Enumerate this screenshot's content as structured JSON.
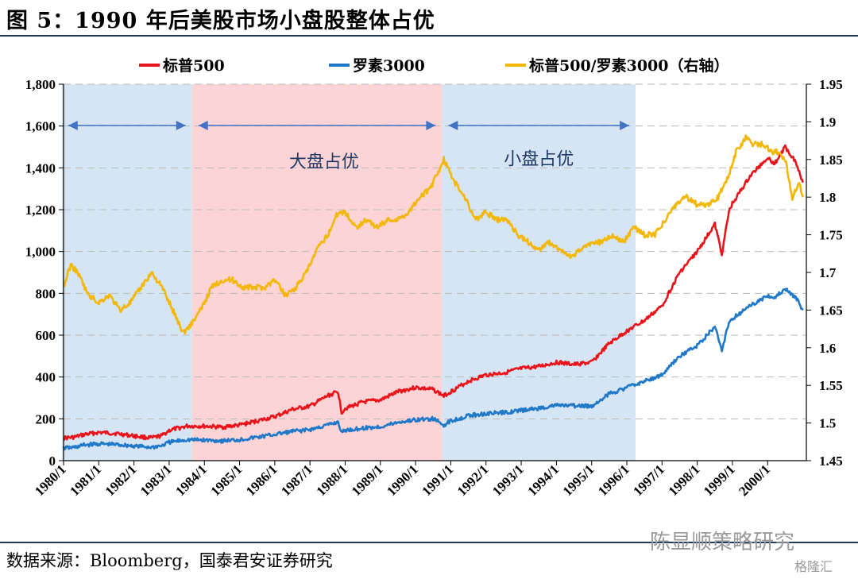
{
  "header": {
    "title": "图 5：1990 年后美股市场小盘股整体占优"
  },
  "footer": {
    "source": "数据来源：Bloomberg，国泰君安证券研究",
    "watermark": "陈显顺策略研究",
    "logo": "格隆汇"
  },
  "chart_data": {
    "type": "line",
    "legend": [
      {
        "name": "标普500",
        "color": "#e8141b"
      },
      {
        "name": "罗素3000",
        "color": "#1f78c8"
      },
      {
        "name": "标普500/罗素3000（右轴）",
        "color": "#f2b707"
      }
    ],
    "x_ticks": [
      "1980/1",
      "1981/1",
      "1982/1",
      "1983/1",
      "1984/1",
      "1985/1",
      "1986/1",
      "1987/1",
      "1988/1",
      "1989/1",
      "1990/1",
      "1991/1",
      "1992/1",
      "1993/1",
      "1994/1",
      "1995/1",
      "1996/1",
      "1997/1",
      "1998/1",
      "1999/1",
      "2000/1"
    ],
    "y_left": {
      "min": 0,
      "max": 1800,
      "ticks": [
        "0",
        "200",
        "400",
        "600",
        "800",
        "1,000",
        "1,200",
        "1,400",
        "1,600",
        "1,800"
      ]
    },
    "y_right": {
      "min": 1.45,
      "max": 1.95,
      "ticks": [
        "1.45",
        "1.5",
        "1.55",
        "1.6",
        "1.65",
        "1.7",
        "1.75",
        "1.8",
        "1.85",
        "1.9",
        "1.95"
      ]
    },
    "shaded_regions": [
      {
        "start": 1979.95,
        "end": 1983.65,
        "color": "#d6e5f4"
      },
      {
        "start": 1983.65,
        "end": 1990.75,
        "color": "#fdd4d6"
      },
      {
        "start": 1990.75,
        "end": 1996.25,
        "color": "#d6e5f4"
      }
    ],
    "annotations": [
      {
        "text": "大盘占优",
        "x": 1987.4,
        "y": 1.839
      },
      {
        "text": "小盘占优",
        "x": 1993.5,
        "y": 1.843
      }
    ],
    "series": [
      {
        "name": "标普500",
        "axis": "left",
        "color": "#e8141b",
        "x": [
          1980.0,
          1980.3,
          1980.6,
          1981.0,
          1981.5,
          1982.0,
          1982.5,
          1982.8,
          1983.0,
          1983.5,
          1984.0,
          1984.5,
          1985.0,
          1985.5,
          1986.0,
          1986.5,
          1987.0,
          1987.5,
          1987.8,
          1987.9,
          1988.0,
          1988.5,
          1989.0,
          1989.5,
          1990.0,
          1990.5,
          1990.8,
          1991.0,
          1991.5,
          1992.0,
          1992.5,
          1993.0,
          1993.5,
          1994.0,
          1994.5,
          1995.0,
          1995.5,
          1996.0,
          1996.5,
          1997.0,
          1997.5,
          1998.0,
          1998.5,
          1998.7,
          1998.9,
          1999.0,
          1999.5,
          2000.0,
          2000.2,
          2000.5,
          2000.8,
          2001.0
        ],
        "y": [
          108,
          112,
          125,
          135,
          130,
          118,
          108,
          120,
          145,
          165,
          165,
          160,
          170,
          190,
          210,
          245,
          260,
          310,
          330,
          230,
          250,
          280,
          290,
          330,
          350,
          340,
          310,
          330,
          380,
          410,
          420,
          440,
          450,
          470,
          460,
          470,
          560,
          620,
          670,
          740,
          900,
          1000,
          1130,
          990,
          1190,
          1230,
          1360,
          1450,
          1420,
          1500,
          1430,
          1330
        ]
      },
      {
        "name": "罗素3000",
        "axis": "left",
        "color": "#1f78c8",
        "x": [
          1980.0,
          1980.3,
          1980.6,
          1981.0,
          1981.5,
          1982.0,
          1982.5,
          1982.8,
          1983.0,
          1983.5,
          1984.0,
          1984.5,
          1985.0,
          1985.5,
          1986.0,
          1986.5,
          1987.0,
          1987.5,
          1987.8,
          1987.9,
          1988.0,
          1988.5,
          1989.0,
          1989.5,
          1990.0,
          1990.5,
          1990.8,
          1991.0,
          1991.5,
          1992.0,
          1992.5,
          1993.0,
          1993.5,
          1994.0,
          1994.5,
          1995.0,
          1995.5,
          1996.0,
          1996.5,
          1997.0,
          1997.5,
          1998.0,
          1998.5,
          1998.7,
          1998.9,
          1999.0,
          1999.5,
          2000.0,
          2000.2,
          2000.5,
          2000.8,
          2001.0
        ],
        "y": [
          60,
          63,
          75,
          80,
          77,
          70,
          64,
          72,
          88,
          100,
          98,
          95,
          100,
          112,
          125,
          140,
          148,
          170,
          185,
          133,
          145,
          155,
          162,
          183,
          195,
          200,
          170,
          190,
          215,
          225,
          230,
          240,
          250,
          265,
          262,
          260,
          320,
          350,
          380,
          410,
          500,
          550,
          640,
          530,
          660,
          680,
          740,
          790,
          780,
          820,
          780,
          720
        ]
      },
      {
        "name": "标普500/罗素3000（右轴）",
        "axis": "right",
        "color": "#f2b707",
        "x": [
          1980.0,
          1980.2,
          1980.4,
          1980.7,
          1981.0,
          1981.3,
          1981.6,
          1981.9,
          1982.2,
          1982.5,
          1982.8,
          1983.1,
          1983.4,
          1983.6,
          1983.9,
          1984.2,
          1984.5,
          1984.8,
          1985.1,
          1985.4,
          1985.7,
          1986.0,
          1986.3,
          1986.6,
          1986.9,
          1987.2,
          1987.5,
          1987.8,
          1988.0,
          1988.3,
          1988.6,
          1988.9,
          1989.2,
          1989.5,
          1989.8,
          1990.1,
          1990.4,
          1990.7,
          1990.8,
          1991.1,
          1991.4,
          1991.7,
          1992.0,
          1992.3,
          1992.6,
          1992.9,
          1993.2,
          1993.5,
          1993.8,
          1994.1,
          1994.4,
          1994.7,
          1995.0,
          1995.3,
          1995.6,
          1995.9,
          1996.2,
          1996.5,
          1996.8,
          1997.1,
          1997.4,
          1997.7,
          1998.0,
          1998.3,
          1998.6,
          1998.9,
          1999.1,
          1999.4,
          1999.6,
          1999.9,
          2000.1,
          2000.3,
          2000.5,
          2000.7,
          2000.9,
          2001.0
        ],
        "y": [
          1.68,
          1.71,
          1.7,
          1.67,
          1.66,
          1.67,
          1.65,
          1.66,
          1.68,
          1.7,
          1.68,
          1.65,
          1.62,
          1.63,
          1.65,
          1.68,
          1.69,
          1.69,
          1.68,
          1.68,
          1.68,
          1.69,
          1.67,
          1.68,
          1.7,
          1.73,
          1.75,
          1.78,
          1.78,
          1.76,
          1.77,
          1.76,
          1.77,
          1.77,
          1.78,
          1.8,
          1.81,
          1.84,
          1.85,
          1.82,
          1.8,
          1.77,
          1.78,
          1.77,
          1.77,
          1.75,
          1.74,
          1.73,
          1.74,
          1.73,
          1.72,
          1.73,
          1.74,
          1.74,
          1.75,
          1.74,
          1.76,
          1.75,
          1.75,
          1.77,
          1.79,
          1.8,
          1.79,
          1.79,
          1.8,
          1.83,
          1.86,
          1.88,
          1.87,
          1.87,
          1.86,
          1.86,
          1.85,
          1.8,
          1.82,
          1.8
        ]
      }
    ]
  }
}
